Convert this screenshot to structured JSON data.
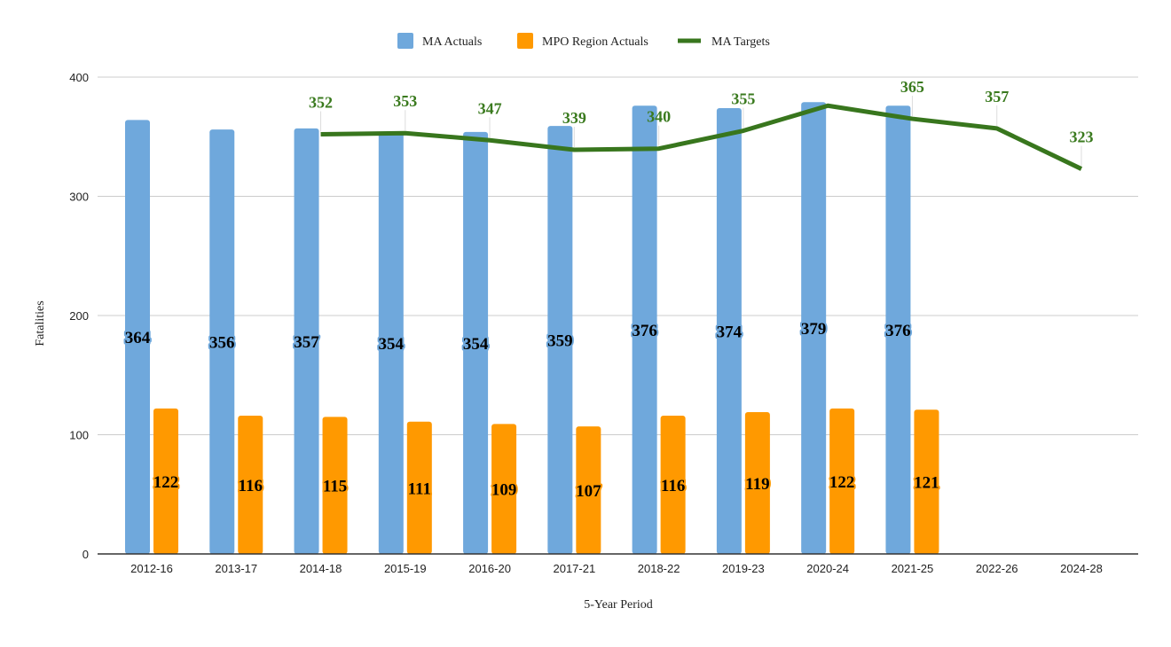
{
  "chart_data": {
    "type": "bar",
    "title": "",
    "xlabel": "5-Year Period",
    "ylabel": "Fatalities",
    "ylim": [
      0,
      400
    ],
    "yticks": [
      0,
      100,
      200,
      300,
      400
    ],
    "grid": true,
    "legend_position": "top",
    "categories": [
      "2012-16",
      "2013-17",
      "2014-18",
      "2015-19",
      "2016-20",
      "2017-21",
      "2018-22",
      "2019-23",
      "2020-24",
      "2021-25",
      "2022-26",
      "2024-28"
    ],
    "series": [
      {
        "name": "MA Actuals",
        "kind": "bar",
        "color": "#6fa8dc",
        "values": [
          364,
          356,
          357,
          354,
          354,
          359,
          376,
          374,
          379,
          376,
          null,
          null
        ]
      },
      {
        "name": "MPO Region Actuals",
        "kind": "bar",
        "color": "#ff9900",
        "values": [
          122,
          116,
          115,
          111,
          109,
          107,
          116,
          119,
          122,
          121,
          null,
          null
        ]
      },
      {
        "name": "MA Targets",
        "kind": "line",
        "color": "#38761d",
        "values": [
          null,
          null,
          352,
          353,
          347,
          339,
          340,
          355,
          376,
          365,
          357,
          323
        ],
        "labels": [
          "",
          "",
          "352",
          "353",
          "347",
          "339",
          "340",
          "355",
          "",
          "365",
          "357",
          "323"
        ]
      }
    ]
  }
}
